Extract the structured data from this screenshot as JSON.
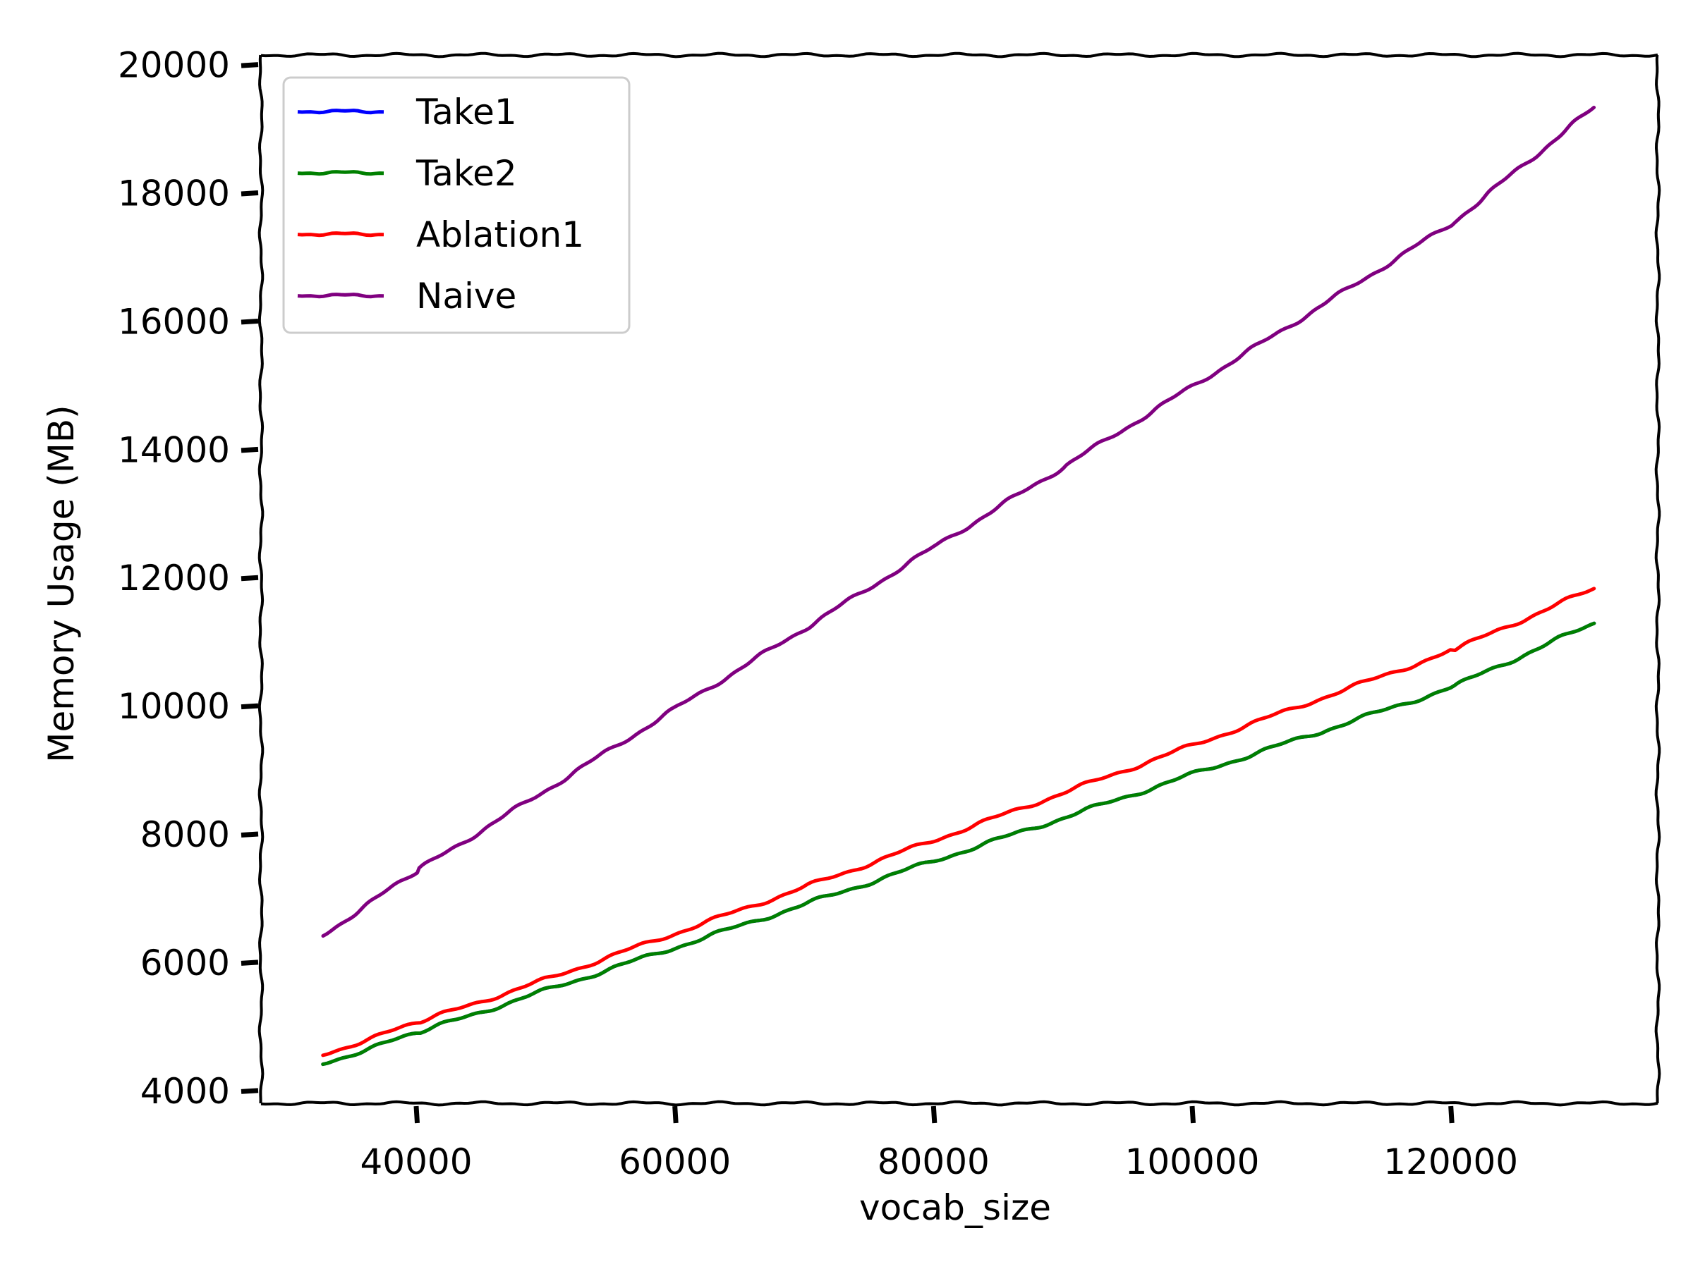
{
  "chart_data": {
    "type": "line",
    "xlabel": "vocab_size",
    "ylabel": "Memory Usage (MB)",
    "xlim": [
      28000,
      136000
    ],
    "ylim": [
      3800,
      20150
    ],
    "xticks": [
      40000,
      60000,
      80000,
      100000,
      120000
    ],
    "yticks": [
      4000,
      6000,
      8000,
      10000,
      12000,
      14000,
      16000,
      18000,
      20000
    ],
    "x": [
      32768,
      40000,
      50000,
      60000,
      70000,
      80000,
      90000,
      100000,
      110000,
      120000,
      131072
    ],
    "series": [
      {
        "name": "Take1",
        "color": "#0000ff",
        "values": [
          4420,
          4890,
          5560,
          6230,
          6900,
          7580,
          8250,
          8930,
          9600,
          10280,
          11290
        ]
      },
      {
        "name": "Take2",
        "color": "#008000",
        "values": [
          4420,
          4890,
          5560,
          6230,
          6900,
          7580,
          8250,
          8930,
          9600,
          10280,
          11290
        ]
      },
      {
        "name": "Ablation1",
        "color": "#ff0000",
        "values": [
          4560,
          5050,
          5730,
          6450,
          7170,
          7900,
          8640,
          9380,
          10120,
          10850,
          11830
        ]
      },
      {
        "name": "Naive",
        "color": "#800080",
        "values": [
          6420,
          7420,
          8680,
          9950,
          11200,
          12470,
          13720,
          14980,
          16240,
          17510,
          19330
        ]
      }
    ],
    "legend": "top-left",
    "grid": false,
    "style": "xkcd"
  }
}
